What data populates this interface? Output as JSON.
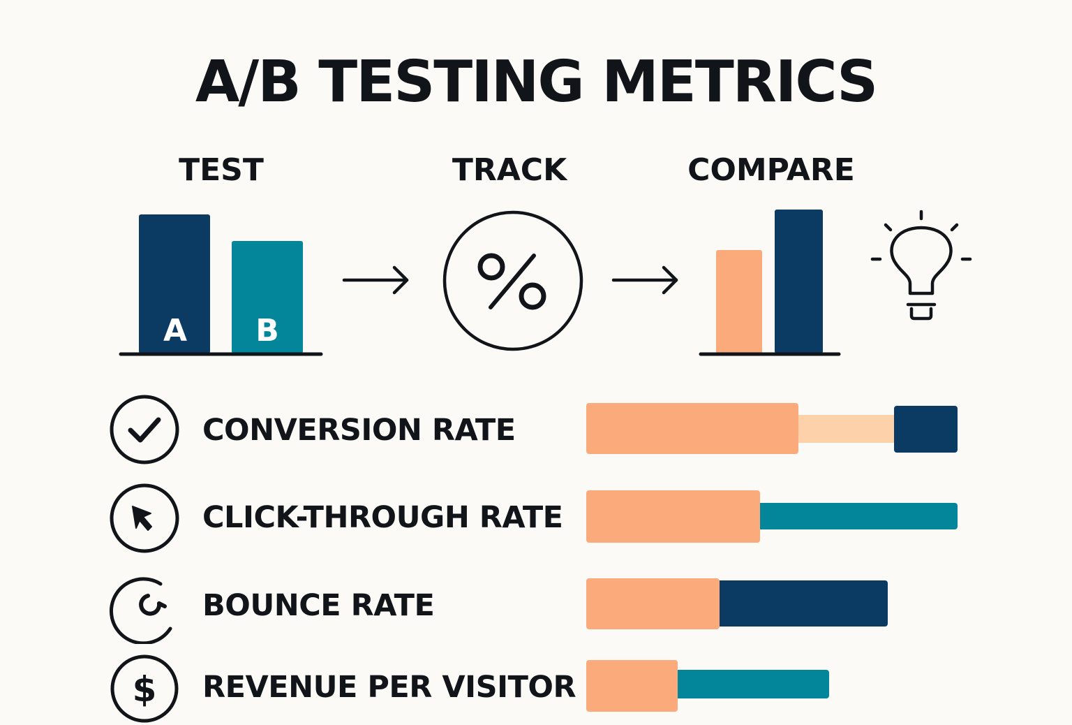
{
  "title": "A/B TESTING METRICS",
  "steps": {
    "test": "TEST",
    "track": "TRACK",
    "compare": "COMPARE"
  },
  "test_bars": {
    "a_label": "A",
    "b_label": "B"
  },
  "track_symbol": "%",
  "colors": {
    "navy": "#0b3a63",
    "teal": "#03859a",
    "peach": "#fbab7b",
    "light_peach": "#fdd2ab",
    "ink": "#111418",
    "background": "#fbfaf6"
  },
  "icons": {
    "test": "bar-chart-icon",
    "track": "percent-icon",
    "compare": "comparison-chart-icon",
    "insight": "lightbulb-icon"
  },
  "metrics": [
    {
      "label": "CONVERSION RATE",
      "icon": "checkmark-icon"
    },
    {
      "label": "CLICK-THROUGH RATE",
      "icon": "cursor-icon"
    },
    {
      "label": "BOUNCE RATE",
      "icon": "bounce-icon"
    },
    {
      "label": "REVENUE PER VISITOR",
      "icon": "dollar-icon"
    }
  ]
}
